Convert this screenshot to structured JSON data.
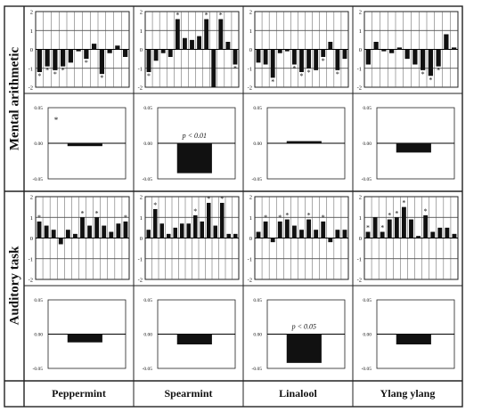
{
  "row_labels": [
    "Mental arithmetic",
    "Auditory task"
  ],
  "column_labels": [
    "Peppermint",
    "Spearmint",
    "Linalool",
    "Ylang ylang"
  ],
  "chart_data": [
    {
      "type": "bar",
      "row": "Mental arithmetic",
      "column": "Peppermint",
      "panel": "per-item",
      "yticks": [
        "2",
        "1",
        "0",
        "-1",
        "-2"
      ],
      "ylim": [
        -2,
        2
      ],
      "values": [
        -1.2,
        -0.9,
        -1.1,
        -0.9,
        -0.7,
        -0.1,
        -0.5,
        0.3,
        -1.3,
        -0.2,
        0.2,
        -0.4
      ],
      "annotations": [
        "*",
        "*",
        "*",
        "*",
        "",
        "",
        "*",
        "",
        "*",
        "",
        "",
        ""
      ]
    },
    {
      "type": "bar",
      "row": "Mental arithmetic",
      "column": "Spearmint",
      "panel": "per-item",
      "yticks": [
        "2",
        "1",
        "0",
        "-1",
        "-2"
      ],
      "ylim": [
        -2,
        2
      ],
      "values": [
        -1.2,
        -0.6,
        -0.2,
        -0.4,
        1.6,
        0.6,
        0.5,
        0.7,
        1.6,
        -2.0,
        1.6,
        0.4,
        -0.8
      ],
      "annotations": [
        "*",
        "",
        "",
        "",
        "*",
        "",
        "",
        "",
        "*",
        "",
        "*",
        "",
        "*"
      ]
    },
    {
      "type": "bar",
      "row": "Mental arithmetic",
      "column": "Linalool",
      "panel": "per-item",
      "yticks": [
        "2",
        "1",
        "0",
        "-1",
        "-2"
      ],
      "ylim": [
        -2,
        2
      ],
      "values": [
        -0.7,
        -0.8,
        -1.5,
        -0.2,
        -0.1,
        -0.8,
        -1.2,
        -1.0,
        -1.1,
        -0.4,
        0.4,
        -1.1,
        -0.5
      ],
      "annotations": [
        "",
        "",
        "*",
        "",
        "",
        "*",
        "*",
        "*",
        "",
        "*",
        "",
        "*",
        ""
      ]
    },
    {
      "type": "bar",
      "row": "Mental arithmetic",
      "column": "Ylang ylang",
      "panel": "per-item",
      "yticks": [
        "2",
        "1",
        "0",
        "-1",
        "-2"
      ],
      "ylim": [
        -2,
        2
      ],
      "values": [
        -0.8,
        0.4,
        -0.1,
        -0.2,
        0.1,
        -0.5,
        -0.8,
        -1.1,
        -1.4,
        -0.9,
        0.8,
        0.1
      ],
      "annotations": [
        "",
        "",
        "",
        "",
        "",
        "",
        "",
        "*",
        "*",
        "*",
        "",
        ""
      ]
    },
    {
      "type": "bar",
      "row": "Mental arithmetic",
      "column": "Peppermint",
      "panel": "mean",
      "yticks": [
        "0.05",
        "0.00",
        "-0.05"
      ],
      "ylim": [
        -0.05,
        0.05
      ],
      "values": [
        -0.004
      ],
      "annotation": "*"
    },
    {
      "type": "bar",
      "row": "Mental arithmetic",
      "column": "Spearmint",
      "panel": "mean",
      "yticks": [
        "0.05",
        "0.00",
        "-0.05"
      ],
      "ylim": [
        -0.05,
        0.05
      ],
      "values": [
        -0.042
      ],
      "annotation": "p < 0.01"
    },
    {
      "type": "bar",
      "row": "Mental arithmetic",
      "column": "Linalool",
      "panel": "mean",
      "yticks": [
        "0.05",
        "0.00",
        "-0.05"
      ],
      "ylim": [
        -0.05,
        0.05
      ],
      "values": [
        0.003
      ],
      "annotation": ""
    },
    {
      "type": "bar",
      "row": "Mental arithmetic",
      "column": "Ylang ylang",
      "panel": "mean",
      "yticks": [
        "0.05",
        "0.00",
        "-0.05"
      ],
      "ylim": [
        -0.05,
        0.05
      ],
      "values": [
        -0.013
      ],
      "annotation": ""
    },
    {
      "type": "bar",
      "row": "Auditory task",
      "column": "Peppermint",
      "panel": "per-item",
      "yticks": [
        "2",
        "1",
        "0",
        "-1",
        "-2"
      ],
      "ylim": [
        -2,
        2
      ],
      "values": [
        0.8,
        0.6,
        0.4,
        -0.3,
        0.4,
        0.2,
        1.0,
        0.6,
        1.0,
        0.6,
        0.3,
        0.7,
        0.8
      ],
      "annotations": [
        "*",
        "",
        "",
        "",
        "",
        "",
        "*",
        "",
        "*",
        "",
        "",
        "",
        "*"
      ]
    },
    {
      "type": "bar",
      "row": "Auditory task",
      "column": "Spearmint",
      "panel": "per-item",
      "yticks": [
        "2",
        "1",
        "0",
        "-1",
        "-2"
      ],
      "ylim": [
        -2,
        2
      ],
      "values": [
        0.4,
        1.4,
        0.7,
        0.2,
        0.5,
        0.7,
        0.7,
        1.1,
        0.8,
        1.7,
        0.6,
        1.7,
        0.2,
        0.2
      ],
      "annotations": [
        "",
        "*",
        "",
        "",
        "",
        "",
        "",
        "*",
        "",
        "*",
        "",
        "*",
        "",
        ""
      ]
    },
    {
      "type": "bar",
      "row": "Auditory task",
      "column": "Linalool",
      "panel": "per-item",
      "yticks": [
        "2",
        "1",
        "0",
        "-1",
        "-2"
      ],
      "ylim": [
        -2,
        2
      ],
      "values": [
        0.3,
        0.8,
        -0.2,
        0.8,
        0.9,
        0.6,
        0.4,
        0.9,
        0.4,
        0.8,
        -0.2,
        0.4,
        0.4
      ],
      "annotations": [
        "",
        "*",
        "",
        "*",
        "*",
        "",
        "",
        "*",
        "",
        "*",
        "",
        "",
        ""
      ]
    },
    {
      "type": "bar",
      "row": "Auditory task",
      "column": "Ylang ylang",
      "panel": "per-item",
      "yticks": [
        "2",
        "1",
        "0",
        "-1",
        "-2"
      ],
      "ylim": [
        -2,
        2
      ],
      "values": [
        0.3,
        1.0,
        0.3,
        0.9,
        1.0,
        1.5,
        0.9,
        0.1,
        1.1,
        0.3,
        0.5,
        0.5,
        0.2
      ],
      "annotations": [
        "*",
        "",
        "*",
        "*",
        "*",
        "*",
        "",
        "",
        "*",
        "",
        "",
        "",
        ""
      ]
    },
    {
      "type": "bar",
      "row": "Auditory task",
      "column": "Peppermint",
      "panel": "mean",
      "yticks": [
        "0.05",
        "0.00",
        "-0.05"
      ],
      "ylim": [
        -0.05,
        0.05
      ],
      "values": [
        -0.012
      ],
      "annotation": ""
    },
    {
      "type": "bar",
      "row": "Auditory task",
      "column": "Spearmint",
      "panel": "mean",
      "yticks": [
        "0.05",
        "0.00",
        "-0.05"
      ],
      "ylim": [
        -0.05,
        0.05
      ],
      "values": [
        -0.015
      ],
      "annotation": ""
    },
    {
      "type": "bar",
      "row": "Auditory task",
      "column": "Linalool",
      "panel": "mean",
      "yticks": [
        "0.05",
        "0.00",
        "-0.05"
      ],
      "ylim": [
        -0.05,
        0.05
      ],
      "values": [
        -0.042
      ],
      "annotation": "p < 0.05"
    },
    {
      "type": "bar",
      "row": "Auditory task",
      "column": "Ylang ylang",
      "panel": "mean",
      "yticks": [
        "0.05",
        "0.00",
        "-0.05"
      ],
      "ylim": [
        -0.05,
        0.05
      ],
      "values": [
        -0.015
      ],
      "annotation": ""
    }
  ]
}
